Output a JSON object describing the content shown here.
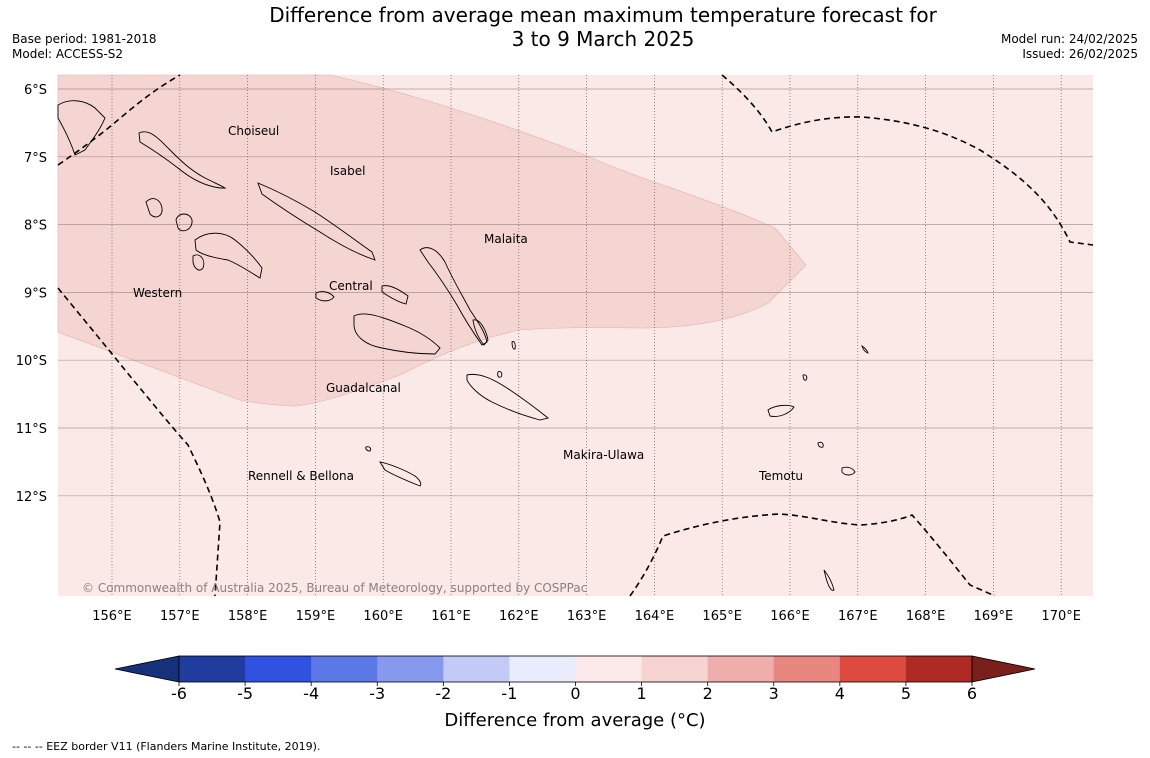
{
  "header": {
    "title_line1": "Difference from average mean maximum temperature forecast for",
    "title_line2": "3 to 9 March 2025",
    "base_period": "Base period: 1981-2018",
    "model": "Model: ACCESS-S2",
    "model_run": "Model run: 24/02/2025",
    "issued": "Issued: 26/02/2025"
  },
  "map": {
    "lat_labels": [
      "6°S",
      "7°S",
      "8°S",
      "9°S",
      "10°S",
      "11°S",
      "12°S"
    ],
    "lon_labels": [
      "156°E",
      "157°E",
      "158°E",
      "159°E",
      "160°E",
      "161°E",
      "162°E",
      "163°E",
      "164°E",
      "165°E",
      "166°E",
      "167°E",
      "168°E",
      "169°E",
      "170°E"
    ],
    "regions": [
      {
        "name": "Choiseul"
      },
      {
        "name": "Isabel"
      },
      {
        "name": "Malaita"
      },
      {
        "name": "Western"
      },
      {
        "name": "Central"
      },
      {
        "name": "Guadalcanal"
      },
      {
        "name": "Makira-Ulawa"
      },
      {
        "name": "Rennell & Bellona"
      },
      {
        "name": "Temotu"
      }
    ],
    "copyright": "© Commonwealth of Australia 2025, Bureau of Meteorology, supported by COSPPac",
    "background_anomaly_color": "#fbe9e7",
    "warm_anomaly_color": "#f5d5d2"
  },
  "colorbar": {
    "ticks": [
      "-6",
      "-5",
      "-4",
      "-3",
      "-2",
      "-1",
      "0",
      "1",
      "2",
      "3",
      "4",
      "5",
      "6"
    ],
    "colors": [
      "#1f3c9e",
      "#2f53e0",
      "#5b78e6",
      "#8699ef",
      "#c2caf5",
      "#e9ecfc",
      "#fceaea",
      "#f6d2d0",
      "#efadab",
      "#e88680",
      "#dc4a40",
      "#ad2a25"
    ],
    "under_color": "#17307a",
    "over_color": "#7a1f1c",
    "title": "Difference from average (°C)"
  },
  "footnote": "--  --  -- EEZ border V11 (Flanders Marine Institute, 2019)."
}
